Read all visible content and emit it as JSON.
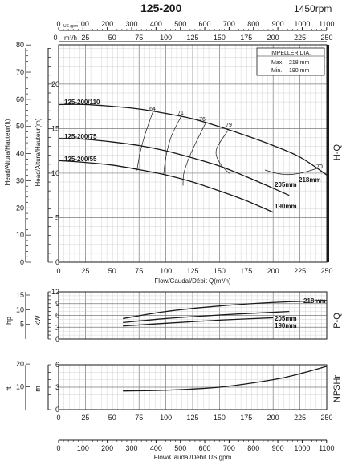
{
  "header": {
    "title": "125-200",
    "speed": "1450rpm"
  },
  "top_axes": {
    "usgpm_label": "US gpm",
    "usgpm_ticks": [
      "0",
      "100",
      "200",
      "300",
      "400",
      "500",
      "600",
      "700",
      "800",
      "900",
      "1000",
      "1100"
    ],
    "m3h_label": "m³/h",
    "m3h_ticks": [
      "0",
      "25",
      "50",
      "75",
      "100",
      "125",
      "150",
      "175",
      "200",
      "225",
      "250"
    ]
  },
  "impeller_box": {
    "title": "IMPELLER DIA.",
    "max_label": "Max.",
    "max_value": "218  mm",
    "min_label": "Min.",
    "min_value": "190  mm"
  },
  "chart_data": [
    {
      "type": "line",
      "panel": "H-Q",
      "side_label": "H-Q",
      "ylabel_left": "Head/Altura/Hauteur(ft)",
      "ylabel_right": "Head/Altura/Hauteur(m)",
      "xlabel": "Flow/Caudal/Débit Q(m³/h)",
      "xlim": [
        0,
        250
      ],
      "x_ticks": [
        "0",
        "25",
        "50",
        "75",
        "100",
        "125",
        "150",
        "175",
        "200",
        "225",
        "250"
      ],
      "ylim_m": [
        0,
        24.4
      ],
      "y_ticks_m": [
        "0",
        "5",
        "10",
        "15",
        "20"
      ],
      "y_ticks_ft": [
        "0",
        "10",
        "20",
        "30",
        "40",
        "50",
        "60",
        "70",
        "80"
      ],
      "grid": true,
      "series": [
        {
          "name": "125-200/110",
          "end_label": "218mm",
          "color": "#1a1a1a",
          "x": [
            0,
            25,
            50,
            75,
            100,
            125,
            150,
            175,
            200,
            225,
            250
          ],
          "y": [
            17.7,
            17.7,
            17.5,
            17.2,
            16.7,
            16.1,
            15.2,
            14.2,
            13.1,
            11.8,
            9.8
          ]
        },
        {
          "name": "125-200/75",
          "end_label": "205mm",
          "color": "#1a1a1a",
          "x": [
            0,
            25,
            50,
            75,
            100,
            125,
            150,
            175,
            200,
            215
          ],
          "y": [
            13.9,
            13.8,
            13.5,
            13.1,
            12.5,
            11.7,
            10.8,
            9.6,
            8.3,
            7.5
          ]
        },
        {
          "name": "125-200/55",
          "end_label": "190mm",
          "color": "#1a1a1a",
          "x": [
            0,
            25,
            50,
            75,
            100,
            125,
            150,
            175,
            200
          ],
          "y": [
            11.4,
            11.2,
            10.9,
            10.4,
            9.8,
            9.0,
            8.0,
            6.9,
            5.6
          ]
        }
      ],
      "efficiency_labels": [
        "64",
        "71",
        "76",
        "79",
        "70"
      ],
      "efficiency_lines": [
        {
          "label": "64",
          "x": [
            88,
            81,
            76,
            73
          ],
          "y": [
            16.9,
            14.5,
            12.3,
            10.3
          ]
        },
        {
          "label": "71",
          "x": [
            114,
            105,
            100,
            98
          ],
          "y": [
            16.3,
            14.1,
            11.8,
            9.9
          ]
        },
        {
          "label": "76",
          "x": [
            137,
            124,
            117,
            116
          ],
          "y": [
            15.6,
            12.4,
            10.1,
            8.6
          ]
        },
        {
          "label": "79",
          "x": [
            158,
            147,
            151,
            160
          ],
          "y": [
            14.8,
            12.6,
            11.0,
            9.9
          ]
        }
      ]
    },
    {
      "type": "line",
      "panel": "P-Q",
      "side_label": "P-Q",
      "ylabel_left": "hp",
      "ylabel_right": "kW",
      "xlim": [
        0,
        250
      ],
      "ylim": [
        0,
        12
      ],
      "y_ticks_kw": [
        "0",
        "3",
        "6",
        "9",
        "12"
      ],
      "y_ticks_hp": [
        "5",
        "10",
        "15"
      ],
      "grid": true,
      "series": [
        {
          "name": "218mm",
          "x": [
            60,
            100,
            150,
            200,
            250
          ],
          "y": [
            5.2,
            7.0,
            8.4,
            9.3,
            9.8
          ]
        },
        {
          "name": "205mm",
          "x": [
            60,
            100,
            150,
            200,
            215
          ],
          "y": [
            4.2,
            5.2,
            6.1,
            6.8,
            7.0
          ]
        },
        {
          "name": "190mm",
          "x": [
            60,
            100,
            150,
            200
          ],
          "y": [
            3.3,
            4.0,
            4.8,
            5.4
          ]
        }
      ]
    },
    {
      "type": "line",
      "panel": "NPSHr",
      "side_label": "NPSHr",
      "ylabel_left": "ft",
      "ylabel_right": "m",
      "xlim": [
        0,
        250
      ],
      "x_ticks": [
        "0",
        "25",
        "50",
        "75",
        "100",
        "125",
        "150",
        "175",
        "200",
        "225",
        "250"
      ],
      "ylim": [
        0,
        6
      ],
      "y_ticks_m": [
        "0",
        "3",
        "6"
      ],
      "y_ticks_ft": [
        "10",
        "20"
      ],
      "grid": true,
      "series": [
        {
          "name": "NPSHr",
          "x": [
            60,
            100,
            150,
            200,
            225,
            250
          ],
          "y": [
            2.5,
            2.6,
            3.0,
            4.0,
            4.8,
            5.8
          ]
        }
      ]
    }
  ],
  "bottom_axis": {
    "ticks": [
      "0",
      "100",
      "200",
      "300",
      "400",
      "500",
      "600",
      "700",
      "800",
      "900",
      "1000",
      "1100"
    ],
    "label": "Flow/Caudal/Débit  US gpm"
  }
}
